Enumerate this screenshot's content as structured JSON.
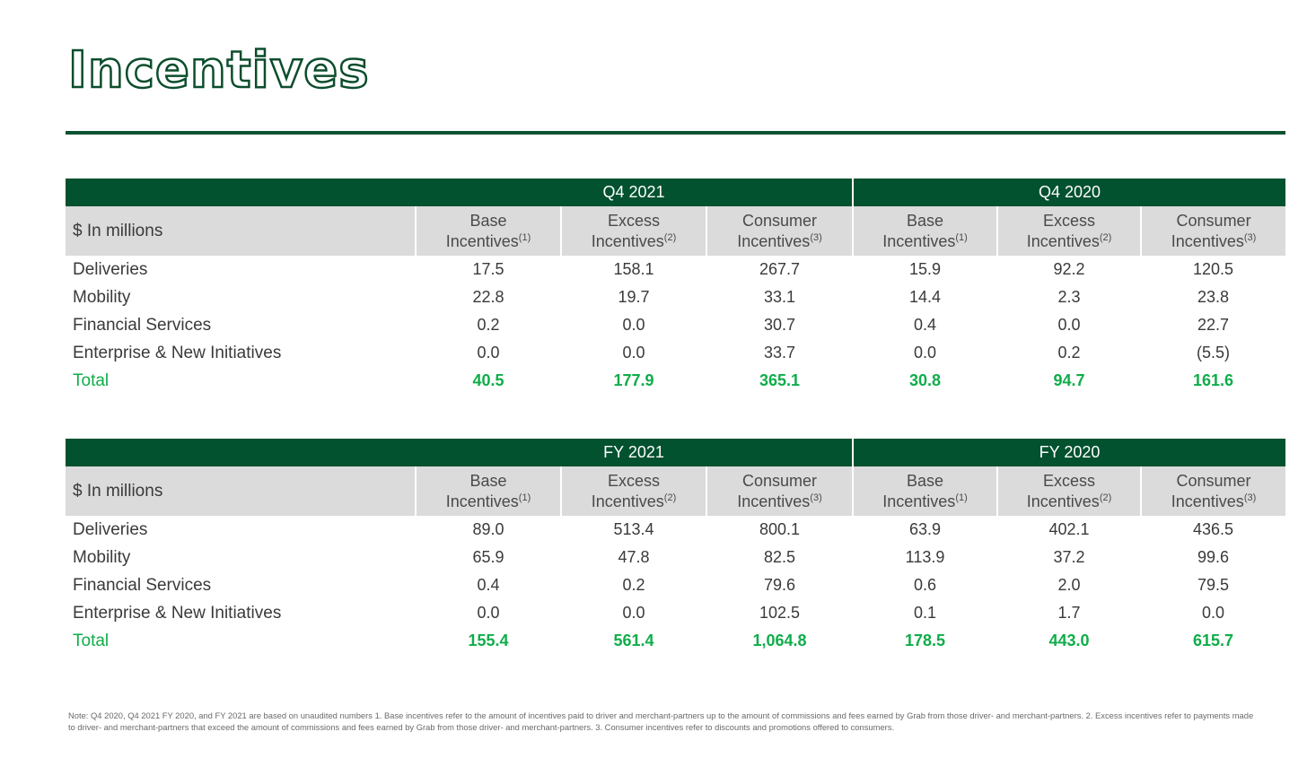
{
  "title": "Incentives",
  "footnote": "Note: Q4 2020, Q4 2021 FY 2020, and FY 2021 are based on unaudited numbers 1. Base incentives refer to the amount of incentives paid to driver and merchant-partners up to the amount of commissions and fees earned by Grab from those driver- and merchant-partners. 2. Excess incentives refer to payments made to driver- and merchant-partners that exceed the amount of commissions and fees earned by Grab from those driver- and merchant-partners. 3. Consumer incentives refer to discounts and promotions offered to consumers.",
  "chart_data": [
    {
      "type": "table",
      "unit_label": "$ In millions",
      "periods": [
        "Q4 2021",
        "Q4 2020"
      ],
      "columns": [
        {
          "line1": "Base",
          "line2": "Incentives",
          "sup": "(1)"
        },
        {
          "line1": "Excess",
          "line2": "Incentives",
          "sup": "(2)"
        },
        {
          "line1": "Consumer",
          "line2": "Incentives",
          "sup": "(3)"
        }
      ],
      "rows": [
        {
          "label": "Deliveries",
          "values": [
            "17.5",
            "158.1",
            "267.7",
            "15.9",
            "92.2",
            "120.5"
          ]
        },
        {
          "label": "Mobility",
          "values": [
            "22.8",
            "19.7",
            "33.1",
            "14.4",
            "2.3",
            "23.8"
          ]
        },
        {
          "label": "Financial Services",
          "values": [
            "0.2",
            "0.0",
            "30.7",
            "0.4",
            "0.0",
            "22.7"
          ]
        },
        {
          "label": "Enterprise & New Initiatives",
          "values": [
            "0.0",
            "0.0",
            "33.7",
            "0.0",
            "0.2",
            "(5.5)"
          ]
        },
        {
          "label": "Total",
          "values": [
            "40.5",
            "177.9",
            "365.1",
            "30.8",
            "94.7",
            "161.6"
          ],
          "total": true
        }
      ]
    },
    {
      "type": "table",
      "unit_label": "$ In millions",
      "periods": [
        "FY 2021",
        "FY 2020"
      ],
      "columns": [
        {
          "line1": "Base",
          "line2": "Incentives",
          "sup": "(1)"
        },
        {
          "line1": "Excess",
          "line2": "Incentives",
          "sup": "(2)"
        },
        {
          "line1": "Consumer",
          "line2": "Incentives",
          "sup": "(3)"
        }
      ],
      "rows": [
        {
          "label": "Deliveries",
          "values": [
            "89.0",
            "513.4",
            "800.1",
            "63.9",
            "402.1",
            "436.5"
          ]
        },
        {
          "label": "Mobility",
          "values": [
            "65.9",
            "47.8",
            "82.5",
            "113.9",
            "37.2",
            "99.6"
          ]
        },
        {
          "label": "Financial Services",
          "values": [
            "0.4",
            "0.2",
            "79.6",
            "0.6",
            "2.0",
            "79.5"
          ]
        },
        {
          "label": "Enterprise & New Initiatives",
          "values": [
            "0.0",
            "0.0",
            "102.5",
            "0.1",
            "1.7",
            "0.0"
          ]
        },
        {
          "label": "Total",
          "values": [
            "155.4",
            "561.4",
            "1,064.8",
            "178.5",
            "443.0",
            "615.7"
          ],
          "total": true
        }
      ]
    }
  ],
  "colors": {
    "brand_green": "#02512f",
    "total_green": "#0fad4a",
    "header_grey": "#dbdbdb"
  }
}
